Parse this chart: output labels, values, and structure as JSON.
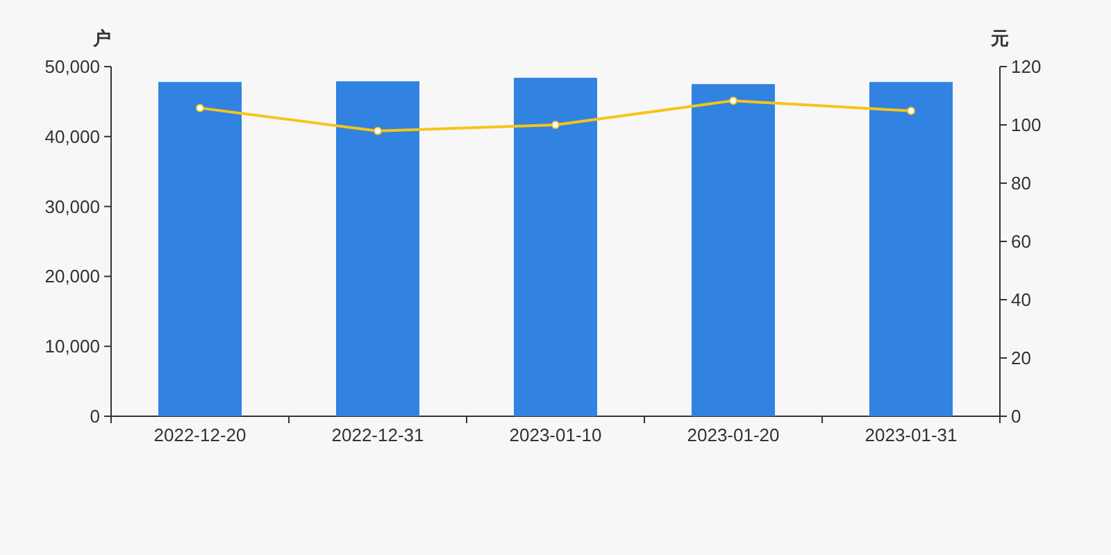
{
  "chart_data": {
    "type": "bar",
    "ylabel": "户",
    "y2label": "元",
    "categories": [
      "2022-12-20",
      "2022-12-31",
      "2023-01-10",
      "2023-01-20",
      "2023-01-31"
    ],
    "series": [
      {
        "color": "#3282e2",
        "values": [
          47800,
          47900,
          48400,
          47500,
          47800
        ]
      },
      {
        "type": "line",
        "axis": "y2",
        "color": "#f5c518",
        "marker": "circle",
        "values": [
          105.8,
          97.9,
          100.0,
          108.3,
          104.8
        ]
      }
    ],
    "ylim": [
      0,
      50000
    ],
    "yticks": [
      0,
      {
        "value": 10000,
        "label": "10,000"
      },
      {
        "value": 20000,
        "label": "20,000"
      },
      {
        "value": 30000,
        "label": "30,000"
      },
      {
        "value": 40000,
        "label": "40,000"
      },
      {
        "value": 50000,
        "label": "50,000"
      }
    ],
    "y2lim": [
      0,
      120
    ],
    "y2ticks": [
      0,
      20,
      40,
      60,
      80,
      100,
      120
    ],
    "grid": false
  }
}
